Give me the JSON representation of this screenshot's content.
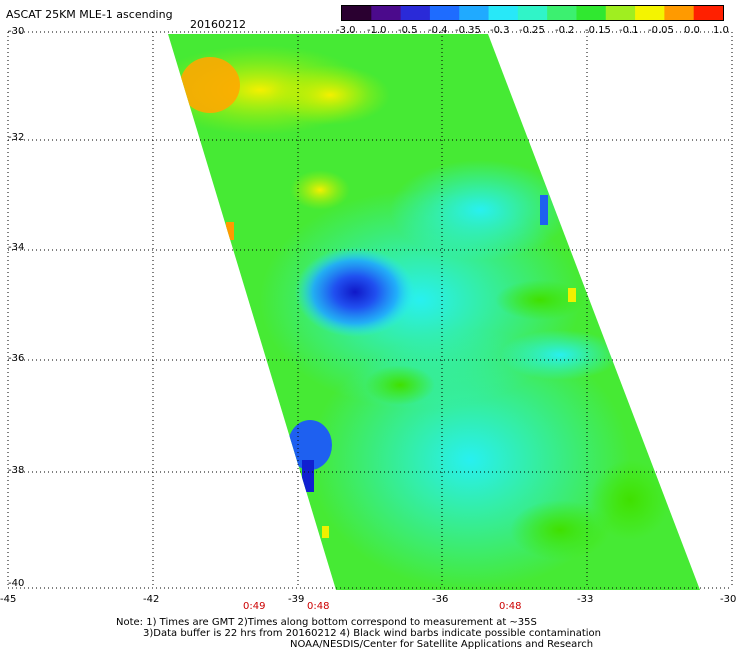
{
  "header": {
    "title": "ASCAT 25KM MLE-1 ascending",
    "date": "20160212"
  },
  "colorbar": {
    "labels": [
      "-3.0",
      "-1.0",
      "-0.5",
      "-0.4",
      "-0.35",
      "-0.3",
      "-0.25",
      "-0.2",
      "-0.15",
      "-0.1",
      "-0.05",
      "0.0",
      "1.0"
    ],
    "colors": [
      "#2a0030",
      "#4b0a8c",
      "#2a2ad8",
      "#1e6cff",
      "#20aaff",
      "#28e8f8",
      "#30f4c8",
      "#3cf070",
      "#30e830",
      "#a0ee20",
      "#f4f400",
      "#ff9a00",
      "#ff2000"
    ]
  },
  "axes": {
    "lat_labels": [
      "-30",
      "-32",
      "-34",
      "-36",
      "-38",
      "-40"
    ],
    "lon_labels": [
      "-45",
      "-42",
      "-39",
      "-36",
      "-33",
      "-30"
    ],
    "time_labels": [
      "0:49",
      "0:48",
      "0:48"
    ]
  },
  "notes": {
    "line1": "Note: 1) Times are GMT 2)Times along bottom correspond to measurement at ~35S",
    "line2": "3)Data buffer is 22 hrs from 20160212 4) Black wind barbs indicate possible contamination",
    "line3": "NOAA/NESDIS/Center for Satellite Applications and Research"
  }
}
